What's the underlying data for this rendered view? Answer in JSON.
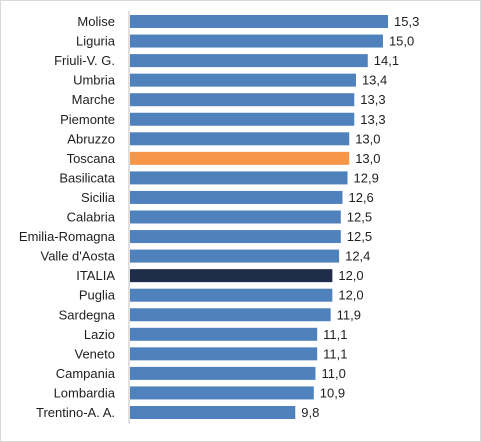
{
  "chart_data": {
    "type": "bar",
    "orientation": "horizontal",
    "title": "",
    "xlabel": "",
    "ylabel": "",
    "categories": [
      "Molise",
      "Liguria",
      "Friuli-V. G.",
      "Umbria",
      "Marche",
      "Piemonte",
      "Abruzzo",
      "Toscana",
      "Basilicata",
      "Sicilia",
      "Calabria",
      "Emilia-Romagna",
      "Valle d'Aosta",
      "ITALIA",
      "Puglia",
      "Sardegna",
      "Lazio",
      "Veneto",
      "Campania",
      "Lombardia",
      "Trentino-A. A."
    ],
    "values": [
      15.3,
      15.0,
      14.1,
      13.4,
      13.3,
      13.3,
      13.0,
      13.0,
      12.9,
      12.6,
      12.5,
      12.5,
      12.4,
      12.0,
      12.0,
      11.9,
      11.1,
      11.1,
      11.0,
      10.9,
      9.8
    ],
    "value_labels": [
      "15,3",
      "15,0",
      "14,1",
      "13,4",
      "13,3",
      "13,3",
      "13,0",
      "13,0",
      "12,9",
      "12,6",
      "12,5",
      "12,5",
      "12,4",
      "12,0",
      "12,0",
      "11,9",
      "11,1",
      "11,1",
      "11,0",
      "10,9",
      "9,8"
    ],
    "xlim": [
      0,
      15.3
    ],
    "grid": false,
    "legend": "none",
    "colors": {
      "default": "#4f81bd",
      "highlight_toscana": "#f79646",
      "highlight_italia": "#1f2d4a"
    },
    "highlight": {
      "Toscana": "highlight_toscana",
      "ITALIA": "highlight_italia"
    }
  }
}
